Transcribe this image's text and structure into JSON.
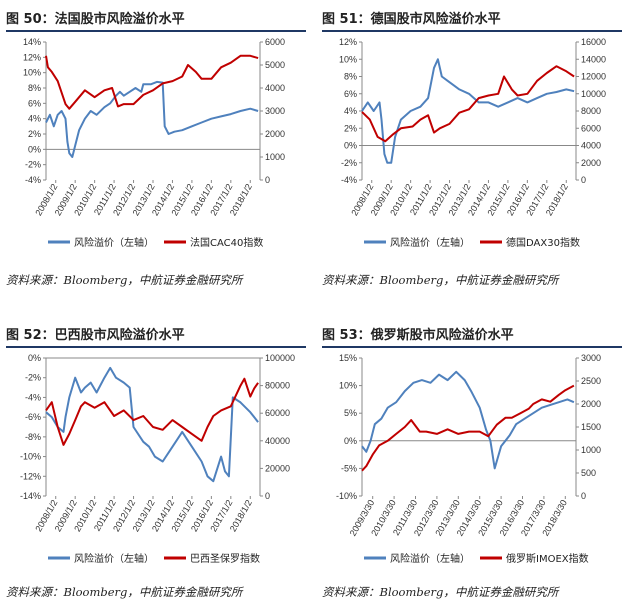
{
  "colors": {
    "risk_premium": "#4f81bd",
    "index": "#c00000",
    "rule": "#1f3864"
  },
  "chart_data": [
    {
      "type": "line",
      "title": "图 50：法国股市风险溢价水平",
      "source": "资料来源：Bloomberg，中航证券金融研究所",
      "x_ticks": [
        "2008/1/2",
        "2009/1/2",
        "2010/1/2",
        "2011/1/2",
        "2012/1/2",
        "2013/1/2",
        "2014/1/2",
        "2015/1/2",
        "2016/1/2",
        "2017/1/2",
        "2018/1/2"
      ],
      "xlim": [
        2008.0,
        2019.0
      ],
      "y_left": {
        "min": -4,
        "max": 14,
        "step": 2,
        "labels": [
          "-4%",
          "-2%",
          "0%",
          "2%",
          "4%",
          "6%",
          "8%",
          "10%",
          "12%",
          "14%"
        ]
      },
      "y_right": {
        "min": 0,
        "max": 6000,
        "step": 1000,
        "labels": [
          "0",
          "1000",
          "2000",
          "3000",
          "4000",
          "5000",
          "6000"
        ]
      },
      "series": [
        {
          "name": "风险溢价（左轴）",
          "axis": "left",
          "x": [
            2008.0,
            2008.2,
            2008.4,
            2008.6,
            2008.8,
            2009.0,
            2009.1,
            2009.2,
            2009.35,
            2009.5,
            2009.7,
            2010.0,
            2010.3,
            2010.6,
            2011.0,
            2011.3,
            2011.6,
            2011.8,
            2012.0,
            2012.3,
            2012.6,
            2012.9,
            2013.0,
            2013.4,
            2013.7,
            2014.0,
            2014.1,
            2014.3,
            2014.6,
            2015.0,
            2015.5,
            2016.0,
            2016.5,
            2017.0,
            2017.5,
            2018.0,
            2018.5,
            2018.9
          ],
          "y": [
            3.5,
            4.5,
            3.0,
            4.5,
            5.0,
            4.0,
            1.0,
            -0.5,
            -1.0,
            0.5,
            2.5,
            4.0,
            5.0,
            4.5,
            5.5,
            6.0,
            7.0,
            7.5,
            7.0,
            7.5,
            8.0,
            7.5,
            8.5,
            8.5,
            8.8,
            8.7,
            3.0,
            2.0,
            2.3,
            2.5,
            3.0,
            3.5,
            4.0,
            4.3,
            4.6,
            5.0,
            5.3,
            5.0
          ]
        },
        {
          "name": "法国CAC40指数",
          "axis": "right",
          "x": [
            2008.0,
            2008.1,
            2008.3,
            2008.6,
            2009.0,
            2009.2,
            2009.5,
            2010.0,
            2010.5,
            2011.0,
            2011.4,
            2011.7,
            2012.0,
            2012.5,
            2013.0,
            2013.5,
            2014.0,
            2014.5,
            2015.0,
            2015.3,
            2015.7,
            2016.0,
            2016.5,
            2017.0,
            2017.5,
            2018.0,
            2018.5,
            2018.9
          ],
          "y": [
            5400,
            4900,
            4700,
            4300,
            3300,
            3100,
            3400,
            3900,
            3600,
            3900,
            4000,
            3200,
            3300,
            3300,
            3700,
            3900,
            4200,
            4300,
            4500,
            5000,
            4700,
            4400,
            4400,
            4900,
            5100,
            5400,
            5400,
            5300
          ]
        }
      ]
    },
    {
      "type": "line",
      "title": "图 51：德国股市风险溢价水平",
      "source": "资料来源：Bloomberg，中航证券金融研究所",
      "x_ticks": [
        "2008/1/2",
        "2009/1/2",
        "2010/1/2",
        "2011/1/2",
        "2012/1/2",
        "2013/1/2",
        "2014/1/2",
        "2015/1/2",
        "2016/1/2",
        "2017/1/2",
        "2018/1/2"
      ],
      "xlim": [
        2008.0,
        2019.0
      ],
      "y_left": {
        "min": -4,
        "max": 12,
        "step": 2,
        "labels": [
          "-4%",
          "-2%",
          "0%",
          "2%",
          "4%",
          "6%",
          "8%",
          "10%",
          "12%"
        ]
      },
      "y_right": {
        "min": 0,
        "max": 16000,
        "step": 2000,
        "labels": [
          "0",
          "2000",
          "4000",
          "6000",
          "8000",
          "10000",
          "12000",
          "14000",
          "16000"
        ]
      },
      "series": [
        {
          "name": "风险溢价（左轴）",
          "axis": "left",
          "x": [
            2008.0,
            2008.3,
            2008.6,
            2008.9,
            2009.0,
            2009.15,
            2009.3,
            2009.5,
            2009.7,
            2010.0,
            2010.5,
            2011.0,
            2011.4,
            2011.7,
            2011.9,
            2012.1,
            2012.4,
            2012.7,
            2013.0,
            2013.5,
            2014.0,
            2014.5,
            2015.0,
            2015.5,
            2016.0,
            2016.5,
            2017.0,
            2017.5,
            2018.0,
            2018.5,
            2018.9
          ],
          "y": [
            4.0,
            5.0,
            4.0,
            5.0,
            3.0,
            -1.0,
            -2.0,
            -2.0,
            1.0,
            3.0,
            4.0,
            4.5,
            5.5,
            9.0,
            10.0,
            8.0,
            7.5,
            7.0,
            6.5,
            6.0,
            5.0,
            5.0,
            4.5,
            5.0,
            5.5,
            5.0,
            5.5,
            6.0,
            6.2,
            6.5,
            6.3
          ]
        },
        {
          "name": "德国DAX30指数",
          "axis": "right",
          "x": [
            2008.0,
            2008.4,
            2008.8,
            2009.2,
            2009.6,
            2010.0,
            2010.6,
            2011.0,
            2011.4,
            2011.7,
            2012.0,
            2012.5,
            2013.0,
            2013.5,
            2014.0,
            2014.5,
            2015.0,
            2015.3,
            2015.7,
            2016.0,
            2016.5,
            2017.0,
            2017.5,
            2018.0,
            2018.5,
            2018.9
          ],
          "y": [
            7900,
            7000,
            5000,
            4500,
            5300,
            6000,
            6200,
            7000,
            7500,
            5500,
            6000,
            6500,
            7800,
            8200,
            9500,
            9800,
            10000,
            12000,
            10500,
            9800,
            10000,
            11500,
            12400,
            13200,
            12600,
            12000
          ]
        }
      ]
    },
    {
      "type": "line",
      "title": "图 52：巴西股市风险溢价水平",
      "source": "资料来源：Bloomberg，中航证券金融研究所",
      "x_ticks": [
        "2008/1/2",
        "2009/1/2",
        "2010/1/2",
        "2011/1/2",
        "2012/1/2",
        "2013/1/2",
        "2014/1/2",
        "2015/1/2",
        "2016/1/2",
        "2017/1/2",
        "2018/1/2"
      ],
      "xlim": [
        2008.0,
        2019.0
      ],
      "y_left": {
        "min": -14,
        "max": 0,
        "step": 2,
        "labels": [
          "-14%",
          "-12%",
          "-10%",
          "-8%",
          "-6%",
          "-4%",
          "-2%",
          "0%"
        ]
      },
      "y_right": {
        "min": 0,
        "max": 100000,
        "step": 20000,
        "labels": [
          "0",
          "20000",
          "40000",
          "60000",
          "80000",
          "100000"
        ]
      },
      "series": [
        {
          "name": "风险溢价（左轴）",
          "axis": "left",
          "x": [
            2008.0,
            2008.3,
            2008.6,
            2008.9,
            2009.0,
            2009.2,
            2009.5,
            2009.8,
            2010.0,
            2010.3,
            2010.6,
            2011.0,
            2011.3,
            2011.6,
            2012.0,
            2012.3,
            2012.5,
            2013.0,
            2013.3,
            2013.6,
            2014.0,
            2014.5,
            2015.0,
            2015.5,
            2016.0,
            2016.3,
            2016.6,
            2017.0,
            2017.2,
            2017.4,
            2017.6,
            2018.0,
            2018.5,
            2018.9
          ],
          "y": [
            -5.5,
            -6.0,
            -7.0,
            -7.5,
            -6.0,
            -4.0,
            -2.0,
            -3.5,
            -3.0,
            -2.5,
            -3.5,
            -2.0,
            -1.0,
            -2.0,
            -2.5,
            -3.0,
            -7.0,
            -8.5,
            -9.0,
            -10.0,
            -10.5,
            -9.0,
            -7.5,
            -9.0,
            -10.5,
            -12.0,
            -12.5,
            -10.0,
            -11.5,
            -12.0,
            -4.0,
            -4.5,
            -5.5,
            -6.5
          ]
        },
        {
          "name": "巴西圣保罗指数",
          "axis": "right",
          "x": [
            2008.0,
            2008.3,
            2008.6,
            2008.9,
            2009.2,
            2009.5,
            2009.8,
            2010.0,
            2010.5,
            2011.0,
            2011.5,
            2012.0,
            2012.5,
            2013.0,
            2013.5,
            2014.0,
            2014.5,
            2015.0,
            2015.5,
            2016.0,
            2016.3,
            2016.6,
            2017.0,
            2017.5,
            2018.0,
            2018.2,
            2018.5,
            2018.7,
            2018.9
          ],
          "y": [
            62000,
            68000,
            50000,
            37000,
            45000,
            55000,
            65000,
            68000,
            64000,
            68000,
            58000,
            62000,
            55000,
            58000,
            50000,
            48000,
            55000,
            50000,
            45000,
            40000,
            50000,
            58000,
            62000,
            65000,
            80000,
            85000,
            72000,
            78000,
            82000
          ]
        }
      ]
    },
    {
      "type": "line",
      "title": "图 53：俄罗斯股市风险溢价水平",
      "source": "资料来源：Bloomberg，中航证券金融研究所",
      "x_ticks": [
        "2009/3/30",
        "2010/3/30",
        "2011/3/30",
        "2012/3/30",
        "2013/3/30",
        "2014/3/30",
        "2015/3/30",
        "2016/3/30",
        "2017/3/30",
        "2018/3/30"
      ],
      "xlim": [
        2009.0,
        2019.0
      ],
      "y_left": {
        "min": -10,
        "max": 15,
        "step": 5,
        "labels": [
          "-10%",
          "-5%",
          "0%",
          "5%",
          "10%",
          "15%"
        ]
      },
      "y_right": {
        "min": 0,
        "max": 3000,
        "step": 500,
        "labels": [
          "0",
          "500",
          "1000",
          "1500",
          "2000",
          "2500",
          "3000"
        ]
      },
      "series": [
        {
          "name": "风险溢价（左轴）",
          "axis": "left",
          "x": [
            2009.0,
            2009.2,
            2009.4,
            2009.6,
            2009.9,
            2010.2,
            2010.6,
            2011.0,
            2011.4,
            2011.8,
            2012.2,
            2012.6,
            2013.0,
            2013.4,
            2013.8,
            2014.1,
            2014.5,
            2014.8,
            2015.0,
            2015.2,
            2015.5,
            2015.9,
            2016.2,
            2016.6,
            2017.0,
            2017.4,
            2017.8,
            2018.2,
            2018.6,
            2018.9
          ],
          "y": [
            -1.0,
            -2.0,
            0.0,
            3.0,
            4.0,
            6.0,
            7.0,
            9.0,
            10.5,
            11.0,
            10.5,
            12.0,
            11.0,
            12.5,
            11.0,
            9.0,
            6.0,
            2.0,
            0.0,
            -5.0,
            -1.0,
            1.0,
            3.0,
            4.0,
            5.0,
            6.0,
            6.5,
            7.0,
            7.5,
            7.0
          ]
        },
        {
          "name": "俄罗斯IMOEX指数",
          "axis": "right",
          "x": [
            2009.0,
            2009.2,
            2009.5,
            2009.8,
            2010.2,
            2010.6,
            2011.0,
            2011.3,
            2011.7,
            2012.0,
            2012.5,
            2013.0,
            2013.5,
            2014.0,
            2014.5,
            2014.9,
            2015.3,
            2015.7,
            2016.0,
            2016.4,
            2016.8,
            2017.0,
            2017.4,
            2017.8,
            2018.2,
            2018.5,
            2018.9
          ],
          "y": [
            550,
            650,
            900,
            1100,
            1200,
            1350,
            1500,
            1650,
            1400,
            1400,
            1350,
            1450,
            1350,
            1400,
            1400,
            1300,
            1550,
            1700,
            1700,
            1800,
            1900,
            2000,
            2100,
            2050,
            2200,
            2300,
            2400
          ]
        }
      ]
    }
  ]
}
